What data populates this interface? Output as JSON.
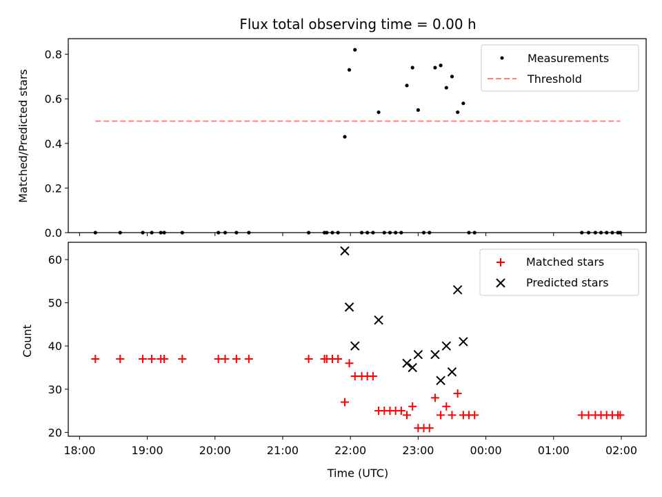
{
  "chart_data": [
    {
      "type": "scatter",
      "title": "Flux total observing time = 0.00 h",
      "xlabel": "",
      "ylabel": "Matched/Predicted stars",
      "xlim": [
        "2024-01-01T17:50",
        "2024-01-02T02:22"
      ],
      "ylim": [
        0,
        0.87
      ],
      "yticks": [
        0.0,
        0.2,
        0.4,
        0.6,
        0.8
      ],
      "ytick_labels": [
        "0.0",
        "0.2",
        "0.4",
        "0.6",
        "0.8"
      ],
      "xticks": [
        "2024-01-01T18:00",
        "2024-01-01T19:00",
        "2024-01-01T20:00",
        "2024-01-01T21:00",
        "2024-01-01T22:00",
        "2024-01-01T23:00",
        "2024-01-02T00:00",
        "2024-01-02T01:00",
        "2024-01-02T02:00"
      ],
      "xtick_labels_shown": false,
      "legend": "top-right",
      "series": [
        {
          "name": "Measurements",
          "marker": "dot",
          "color": "#000000",
          "x": [
            "2024-01-01T18:14",
            "2024-01-01T18:36",
            "2024-01-01T18:56",
            "2024-01-01T19:04",
            "2024-01-01T19:12",
            "2024-01-01T19:15",
            "2024-01-01T19:31",
            "2024-01-01T20:03",
            "2024-01-01T20:09",
            "2024-01-01T20:19",
            "2024-01-01T20:30",
            "2024-01-01T21:23",
            "2024-01-01T21:37",
            "2024-01-01T21:39",
            "2024-01-01T21:44",
            "2024-01-01T21:49",
            "2024-01-01T21:55",
            "2024-01-01T21:59",
            "2024-01-01T22:04",
            "2024-01-01T22:10",
            "2024-01-01T22:15",
            "2024-01-01T22:20",
            "2024-01-01T22:25",
            "2024-01-01T22:30",
            "2024-01-01T22:35",
            "2024-01-01T22:40",
            "2024-01-01T22:45",
            "2024-01-01T22:50",
            "2024-01-01T22:55",
            "2024-01-01T23:00",
            "2024-01-01T23:05",
            "2024-01-01T23:10",
            "2024-01-01T23:15",
            "2024-01-01T23:20",
            "2024-01-01T23:25",
            "2024-01-01T23:30",
            "2024-01-01T23:35",
            "2024-01-01T23:40",
            "2024-01-01T23:45",
            "2024-01-01T23:50",
            "2024-01-02T01:25",
            "2024-01-02T01:31",
            "2024-01-02T01:37",
            "2024-01-02T01:42",
            "2024-01-02T01:47",
            "2024-01-02T01:52",
            "2024-01-02T01:57",
            "2024-01-02T01:59"
          ],
          "y": [
            0,
            0,
            0,
            0,
            0,
            0,
            0,
            0,
            0,
            0,
            0,
            0,
            0,
            0,
            0,
            0,
            0.43,
            0.73,
            0.82,
            0,
            0,
            0,
            0.54,
            0,
            0,
            0,
            0,
            0.66,
            0.74,
            0.55,
            0,
            0,
            0.74,
            0.75,
            0.65,
            0.7,
            0.54,
            0.58,
            0,
            0,
            0,
            0,
            0,
            0,
            0,
            0,
            0,
            0
          ]
        },
        {
          "name": "Threshold",
          "marker": "dashed-line",
          "color": "#ff7f7f",
          "x": [
            "2024-01-01T18:14",
            "2024-01-02T01:59"
          ],
          "y": [
            0.5,
            0.5
          ]
        }
      ]
    },
    {
      "type": "scatter",
      "title": "",
      "xlabel": "Time (UTC)",
      "ylabel": "Count",
      "xlim": [
        "2024-01-01T17:50",
        "2024-01-02T02:22"
      ],
      "ylim": [
        19.1,
        64.0
      ],
      "yticks": [
        20,
        30,
        40,
        50,
        60
      ],
      "ytick_labels": [
        "20",
        "30",
        "40",
        "50",
        "60"
      ],
      "xticks": [
        "2024-01-01T18:00",
        "2024-01-01T19:00",
        "2024-01-01T20:00",
        "2024-01-01T21:00",
        "2024-01-01T22:00",
        "2024-01-01T23:00",
        "2024-01-02T00:00",
        "2024-01-02T01:00",
        "2024-01-02T02:00"
      ],
      "xtick_labels": [
        "18:00",
        "19:00",
        "20:00",
        "21:00",
        "22:00",
        "23:00",
        "00:00",
        "01:00",
        "02:00"
      ],
      "legend": "top-right",
      "series": [
        {
          "name": "Matched stars",
          "marker": "plus",
          "color": "#ff0000",
          "x": [
            "2024-01-01T18:14",
            "2024-01-01T18:36",
            "2024-01-01T18:56",
            "2024-01-01T19:04",
            "2024-01-01T19:12",
            "2024-01-01T19:15",
            "2024-01-01T19:31",
            "2024-01-01T20:03",
            "2024-01-01T20:09",
            "2024-01-01T20:19",
            "2024-01-01T20:30",
            "2024-01-01T21:23",
            "2024-01-01T21:37",
            "2024-01-01T21:39",
            "2024-01-01T21:44",
            "2024-01-01T21:49",
            "2024-01-01T21:55",
            "2024-01-01T21:59",
            "2024-01-01T22:04",
            "2024-01-01T22:10",
            "2024-01-01T22:15",
            "2024-01-01T22:20",
            "2024-01-01T22:25",
            "2024-01-01T22:30",
            "2024-01-01T22:35",
            "2024-01-01T22:40",
            "2024-01-01T22:45",
            "2024-01-01T22:50",
            "2024-01-01T22:55",
            "2024-01-01T23:00",
            "2024-01-01T23:05",
            "2024-01-01T23:10",
            "2024-01-01T23:15",
            "2024-01-01T23:20",
            "2024-01-01T23:25",
            "2024-01-01T23:30",
            "2024-01-01T23:35",
            "2024-01-01T23:40",
            "2024-01-01T23:45",
            "2024-01-01T23:50",
            "2024-01-02T01:25",
            "2024-01-02T01:31",
            "2024-01-02T01:37",
            "2024-01-02T01:42",
            "2024-01-02T01:47",
            "2024-01-02T01:52",
            "2024-01-02T01:57",
            "2024-01-02T01:59"
          ],
          "y": [
            37,
            37,
            37,
            37,
            37,
            37,
            37,
            37,
            37,
            37,
            37,
            37,
            37,
            37,
            37,
            37,
            27,
            36,
            33,
            33,
            33,
            33,
            25,
            25,
            25,
            25,
            25,
            24,
            26,
            21,
            21,
            21,
            28,
            24,
            26,
            24,
            29,
            24,
            24,
            24,
            24,
            24,
            24,
            24,
            24,
            24,
            24,
            24
          ]
        },
        {
          "name": "Predicted stars",
          "marker": "x",
          "color": "#000000",
          "x": [
            "2024-01-01T21:55",
            "2024-01-01T21:59",
            "2024-01-01T22:04",
            "2024-01-01T22:25",
            "2024-01-01T22:50",
            "2024-01-01T22:55",
            "2024-01-01T23:00",
            "2024-01-01T23:15",
            "2024-01-01T23:20",
            "2024-01-01T23:25",
            "2024-01-01T23:30",
            "2024-01-01T23:35",
            "2024-01-01T23:40"
          ],
          "y": [
            62,
            49,
            40,
            46,
            36,
            35,
            38,
            38,
            32,
            40,
            34,
            53,
            41
          ]
        }
      ]
    }
  ]
}
